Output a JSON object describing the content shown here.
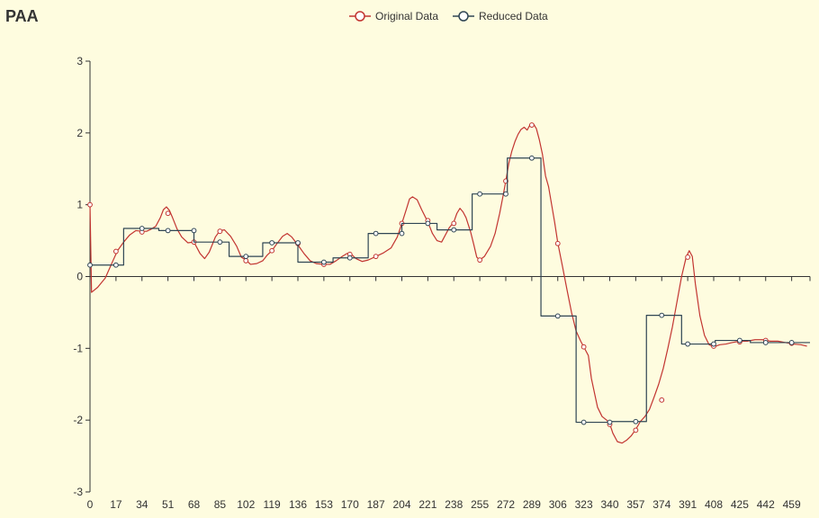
{
  "chart_data": {
    "type": "line",
    "title": "PAA",
    "xlabel": "",
    "ylabel": "",
    "xlim": [
      0,
      471
    ],
    "ylim": [
      -3,
      3
    ],
    "x_ticks": [
      0,
      17,
      34,
      51,
      68,
      85,
      102,
      119,
      136,
      153,
      170,
      187,
      204,
      221,
      238,
      255,
      272,
      289,
      306,
      323,
      340,
      357,
      374,
      391,
      408,
      425,
      442,
      459
    ],
    "y_ticks": [
      -3,
      -2,
      -1,
      0,
      1,
      2,
      3
    ],
    "grid": false,
    "legend_position": "top-center",
    "series": [
      {
        "name": "Original Data",
        "color": "#c23531",
        "style": "line",
        "points": [
          [
            0,
            1.0
          ],
          [
            1,
            -0.22
          ],
          [
            5,
            -0.15
          ],
          [
            10,
            -0.02
          ],
          [
            15,
            0.22
          ],
          [
            18,
            0.36
          ],
          [
            22,
            0.48
          ],
          [
            26,
            0.58
          ],
          [
            30,
            0.64
          ],
          [
            34,
            0.63
          ],
          [
            37,
            0.63
          ],
          [
            40,
            0.66
          ],
          [
            43,
            0.7
          ],
          [
            46,
            0.82
          ],
          [
            48,
            0.93
          ],
          [
            50,
            0.97
          ],
          [
            52,
            0.92
          ],
          [
            54,
            0.82
          ],
          [
            57,
            0.66
          ],
          [
            60,
            0.55
          ],
          [
            64,
            0.47
          ],
          [
            68,
            0.48
          ],
          [
            72,
            0.32
          ],
          [
            75,
            0.25
          ],
          [
            78,
            0.34
          ],
          [
            82,
            0.55
          ],
          [
            85,
            0.64
          ],
          [
            88,
            0.65
          ],
          [
            92,
            0.56
          ],
          [
            96,
            0.42
          ],
          [
            99,
            0.27
          ],
          [
            102,
            0.23
          ],
          [
            105,
            0.17
          ],
          [
            109,
            0.18
          ],
          [
            113,
            0.22
          ],
          [
            116,
            0.3
          ],
          [
            119,
            0.36
          ],
          [
            122,
            0.45
          ],
          [
            126,
            0.56
          ],
          [
            129,
            0.6
          ],
          [
            132,
            0.55
          ],
          [
            136,
            0.44
          ],
          [
            140,
            0.32
          ],
          [
            144,
            0.22
          ],
          [
            148,
            0.18
          ],
          [
            153,
            0.17
          ],
          [
            157,
            0.17
          ],
          [
            161,
            0.22
          ],
          [
            165,
            0.28
          ],
          [
            168,
            0.32
          ],
          [
            170,
            0.33
          ],
          [
            174,
            0.25
          ],
          [
            178,
            0.21
          ],
          [
            182,
            0.23
          ],
          [
            187,
            0.28
          ],
          [
            192,
            0.33
          ],
          [
            197,
            0.4
          ],
          [
            201,
            0.55
          ],
          [
            204,
            0.74
          ],
          [
            207,
            0.94
          ],
          [
            209,
            1.08
          ],
          [
            211,
            1.11
          ],
          [
            214,
            1.07
          ],
          [
            217,
            0.93
          ],
          [
            221,
            0.76
          ],
          [
            224,
            0.6
          ],
          [
            227,
            0.5
          ],
          [
            230,
            0.48
          ],
          [
            232,
            0.56
          ],
          [
            235,
            0.68
          ],
          [
            238,
            0.76
          ],
          [
            240,
            0.88
          ],
          [
            242,
            0.95
          ],
          [
            244,
            0.9
          ],
          [
            246,
            0.82
          ],
          [
            249,
            0.62
          ],
          [
            251,
            0.45
          ],
          [
            253,
            0.27
          ],
          [
            255,
            0.23
          ],
          [
            258,
            0.28
          ],
          [
            262,
            0.42
          ],
          [
            265,
            0.6
          ],
          [
            268,
            0.88
          ],
          [
            270,
            1.1
          ],
          [
            272,
            1.33
          ],
          [
            274,
            1.58
          ],
          [
            276,
            1.75
          ],
          [
            278,
            1.88
          ],
          [
            280,
            1.98
          ],
          [
            282,
            2.05
          ],
          [
            284,
            2.08
          ],
          [
            286,
            2.04
          ],
          [
            288,
            2.12
          ],
          [
            290,
            2.13
          ],
          [
            292,
            2.06
          ],
          [
            294,
            1.9
          ],
          [
            296,
            1.7
          ],
          [
            298,
            1.4
          ],
          [
            300,
            1.25
          ],
          [
            302,
            1.0
          ],
          [
            304,
            0.75
          ],
          [
            306,
            0.47
          ],
          [
            309,
            0.15
          ],
          [
            312,
            -0.18
          ],
          [
            315,
            -0.5
          ],
          [
            318,
            -0.76
          ],
          [
            321,
            -0.9
          ],
          [
            323,
            -0.98
          ],
          [
            326,
            -1.1
          ],
          [
            328,
            -1.42
          ],
          [
            330,
            -1.62
          ],
          [
            332,
            -1.82
          ],
          [
            335,
            -1.95
          ],
          [
            338,
            -2.0
          ],
          [
            340,
            -2.05
          ],
          [
            342,
            -2.18
          ],
          [
            345,
            -2.3
          ],
          [
            348,
            -2.32
          ],
          [
            351,
            -2.28
          ],
          [
            354,
            -2.22
          ],
          [
            357,
            -2.13
          ],
          [
            360,
            -2.02
          ],
          [
            363,
            -1.95
          ],
          [
            366,
            -1.85
          ],
          [
            369,
            -1.68
          ],
          [
            372,
            -1.5
          ],
          [
            375,
            -1.28
          ],
          [
            378,
            -1.0
          ],
          [
            381,
            -0.7
          ],
          [
            384,
            -0.35
          ],
          [
            387,
            0.0
          ],
          [
            390,
            0.27
          ],
          [
            392,
            0.36
          ],
          [
            394,
            0.28
          ],
          [
            396,
            -0.1
          ],
          [
            399,
            -0.55
          ],
          [
            402,
            -0.82
          ],
          [
            405,
            -0.95
          ],
          [
            408,
            -0.98
          ],
          [
            412,
            -0.95
          ],
          [
            416,
            -0.94
          ],
          [
            420,
            -0.92
          ],
          [
            425,
            -0.9
          ],
          [
            430,
            -0.9
          ],
          [
            435,
            -0.88
          ],
          [
            440,
            -0.88
          ],
          [
            445,
            -0.9
          ],
          [
            450,
            -0.9
          ],
          [
            455,
            -0.92
          ],
          [
            460,
            -0.94
          ],
          [
            465,
            -0.95
          ],
          [
            469,
            -0.97
          ]
        ],
        "markers": [
          [
            0,
            1.0
          ],
          [
            17,
            0.35
          ],
          [
            34,
            0.62
          ],
          [
            51,
            0.88
          ],
          [
            68,
            0.48
          ],
          [
            85,
            0.63
          ],
          [
            102,
            0.22
          ],
          [
            119,
            0.36
          ],
          [
            136,
            0.46
          ],
          [
            153,
            0.17
          ],
          [
            170,
            0.31
          ],
          [
            187,
            0.28
          ],
          [
            204,
            0.74
          ],
          [
            221,
            0.78
          ],
          [
            238,
            0.74
          ],
          [
            255,
            0.23
          ],
          [
            272,
            1.33
          ],
          [
            289,
            2.11
          ],
          [
            306,
            0.46
          ],
          [
            323,
            -0.98
          ],
          [
            340,
            -2.06
          ],
          [
            357,
            -2.14
          ],
          [
            374,
            -1.72
          ],
          [
            391,
            0.27
          ],
          [
            408,
            -0.97
          ],
          [
            425,
            -0.91
          ],
          [
            442,
            -0.89
          ],
          [
            459,
            -0.93
          ]
        ]
      },
      {
        "name": "Reduced Data",
        "color": "#2f4554",
        "style": "step",
        "segments": [
          [
            0,
            22,
            0.16
          ],
          [
            22,
            45,
            0.67
          ],
          [
            45,
            68,
            0.64
          ],
          [
            68,
            91,
            0.48
          ],
          [
            91,
            113,
            0.28
          ],
          [
            113,
            136,
            0.47
          ],
          [
            136,
            159,
            0.2
          ],
          [
            159,
            182,
            0.26
          ],
          [
            182,
            204,
            0.6
          ],
          [
            204,
            227,
            0.74
          ],
          [
            227,
            250,
            0.65
          ],
          [
            250,
            273,
            1.15
          ],
          [
            273,
            295,
            1.65
          ],
          [
            295,
            318,
            -0.55
          ],
          [
            318,
            341,
            -2.03
          ],
          [
            341,
            364,
            -2.02
          ],
          [
            364,
            387,
            -0.54
          ],
          [
            387,
            409,
            -0.94
          ],
          [
            409,
            432,
            -0.89
          ],
          [
            432,
            455,
            -0.92
          ],
          [
            455,
            471,
            -0.92
          ]
        ],
        "markers": [
          [
            0,
            0.16
          ],
          [
            17,
            0.16
          ],
          [
            34,
            0.67
          ],
          [
            51,
            0.64
          ],
          [
            68,
            0.64
          ],
          [
            85,
            0.48
          ],
          [
            102,
            0.28
          ],
          [
            119,
            0.47
          ],
          [
            136,
            0.47
          ],
          [
            153,
            0.2
          ],
          [
            170,
            0.26
          ],
          [
            187,
            0.6
          ],
          [
            204,
            0.6
          ],
          [
            221,
            0.74
          ],
          [
            238,
            0.65
          ],
          [
            255,
            1.15
          ],
          [
            272,
            1.15
          ],
          [
            289,
            1.65
          ],
          [
            306,
            -0.55
          ],
          [
            323,
            -2.03
          ],
          [
            340,
            -2.03
          ],
          [
            357,
            -2.02
          ],
          [
            374,
            -0.54
          ],
          [
            391,
            -0.94
          ],
          [
            408,
            -0.94
          ],
          [
            425,
            -0.89
          ],
          [
            442,
            -0.92
          ],
          [
            459,
            -0.92
          ]
        ]
      }
    ]
  }
}
